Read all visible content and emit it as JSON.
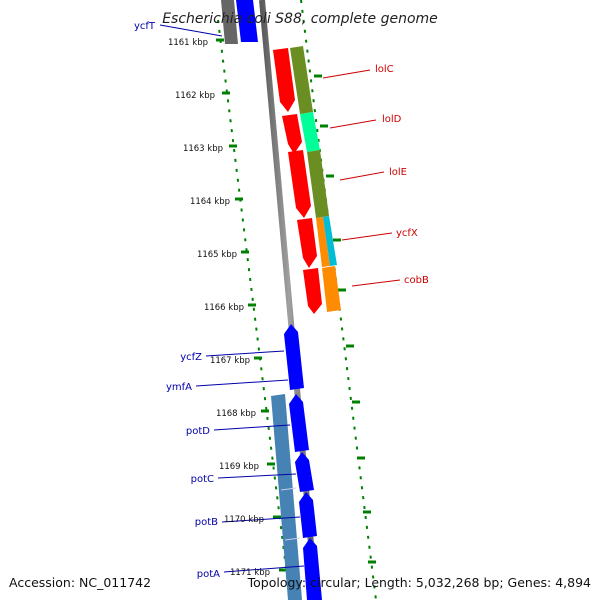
{
  "title": "Escherichia coli S88, complete genome",
  "accession": "Accession: NC_011742",
  "topology": "Topology: circular; Length: 5,032,268 bp; Genes: 4,894",
  "kbp_labels": [
    "1161 kbp",
    "1162 kbp",
    "1163 kbp",
    "1164 kbp",
    "1165 kbp",
    "1166 kbp",
    "1167 kbp",
    "1168 kbp",
    "1169 kbp",
    "1170 kbp",
    "1171 kbp"
  ],
  "genes_right": [
    "lolC",
    "lolD",
    "lolE",
    "ycfX",
    "cobB"
  ],
  "genes_left": [
    "ycfT",
    "ycfZ",
    "ymfA",
    "potD",
    "potC",
    "potB",
    "potA"
  ],
  "colors": {
    "forward": "#ff0000",
    "reverse": "#0000ff",
    "cog_green": "#6b8e23",
    "cog_mint": "#00ff99",
    "cog_orange": "#ff8c00",
    "cog_cyan": "#00bcd4",
    "cog_steel": "#4682b4",
    "backbone": "#808080",
    "ticks": "#008000",
    "right_label": "#cc0000",
    "left_label": "#0000aa"
  }
}
